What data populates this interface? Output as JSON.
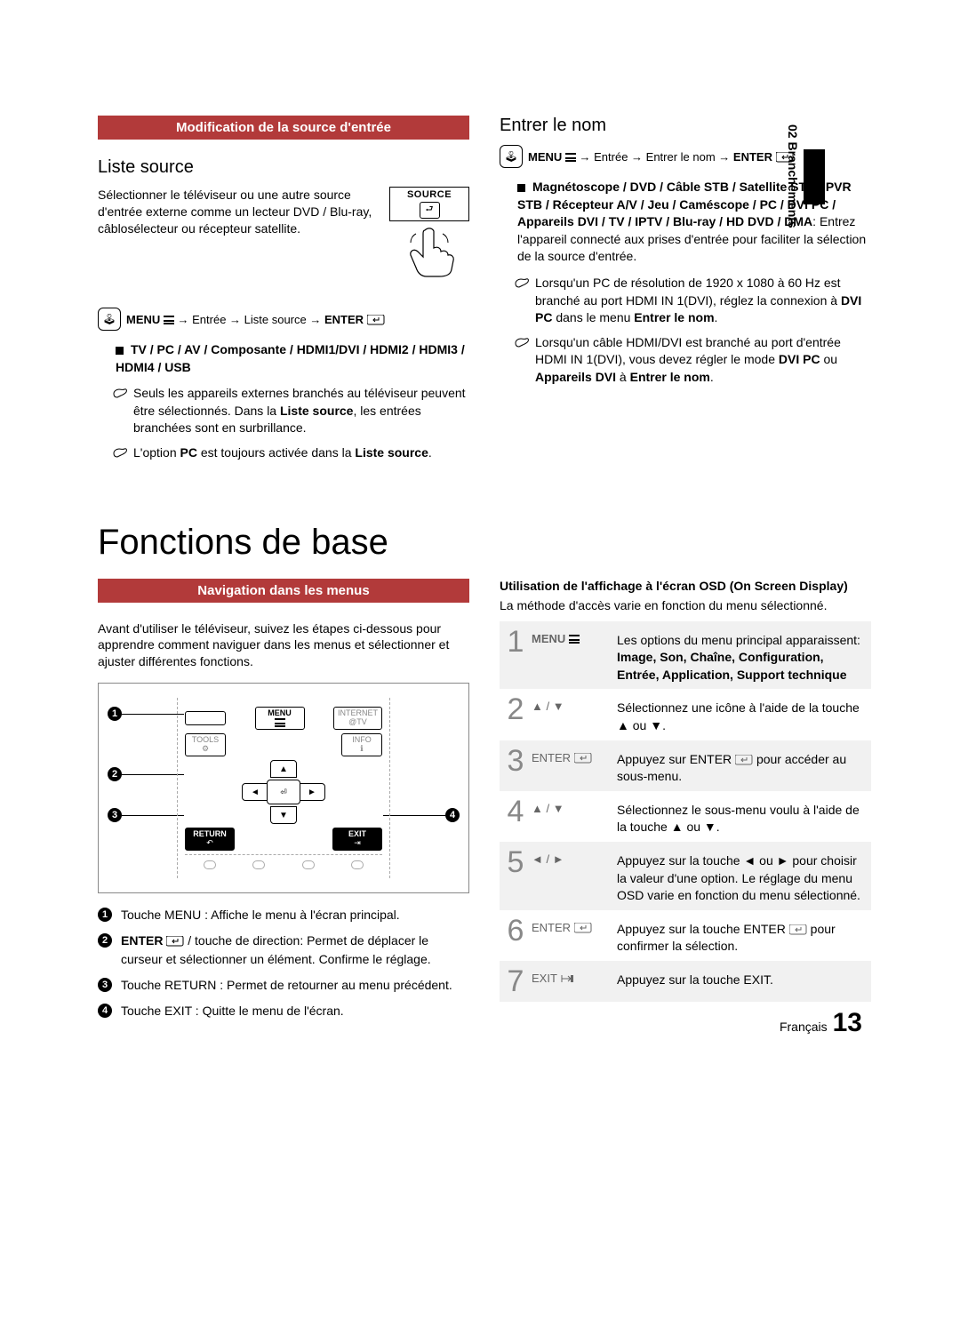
{
  "chapter_tab": "02  Branchements",
  "left": {
    "section_bar": "Modification de la source d'entrée",
    "subhead": "Liste source",
    "intro": "Sélectionner le téléviseur ou une autre source d'entrée externe comme un lecteur DVD / Blu-ray, câblosélecteur ou récepteur satellite.",
    "source_label": "SOURCE",
    "menu_path": "MENU → Entrée → Liste source → ENTER",
    "bullet1_bold": "TV / PC / AV / Composante / HDMI1/DVI / HDMI2 / HDMI3 / HDMI4 / USB",
    "note1": "Seuls les appareils externes branchés au téléviseur peuvent être sélectionnés. Dans la Liste source, les entrées branchées sont en surbrillance.",
    "note1_b1": "Liste source",
    "note2_pre": "L'option ",
    "note2_b1": "PC",
    "note2_mid": " est toujours activée dans la ",
    "note2_b2": "Liste source",
    "note2_post": "."
  },
  "right": {
    "subhead": "Entrer le nom",
    "menu_path": "MENU → Entrée → Entrer le nom → ENTER",
    "bullet_bold": "Magnétoscope / DVD / Câble STB / Satellite STB / PVR STB / Récepteur A/V / Jeu / Caméscope / PC / DVI PC / Appareils DVI / TV / IPTV / Blu-ray / HD DVD / DMA",
    "bullet_rest": ": Entrez l'appareil connecté aux prises d'entrée pour faciliter la sélection de la source d'entrée.",
    "note1_pre": "Lorsqu'un PC de résolution de 1920 x 1080 à 60 Hz est branché au port HDMI IN 1(DVI), réglez la connexion à ",
    "note1_b1": "DVI PC",
    "note1_mid": " dans le menu ",
    "note1_b2": "Entrer le nom",
    "note1_post": ".",
    "note2_pre": "Lorsqu'un câble HDMI/DVI est branché au port d'entrée HDMI IN 1(DVI), vous devez régler le mode ",
    "note2_b1": "DVI PC",
    "note2_mid": " ou ",
    "note2_b2": "Appareils DVI",
    "note2_mid2": " à ",
    "note2_b3": "Entrer le nom",
    "note2_post": "."
  },
  "big_title": "Fonctions de base",
  "nav": {
    "section_bar": "Navigation dans les menus",
    "intro": "Avant d'utiliser le téléviseur, suivez les étapes ci-dessous pour apprendre comment naviguer dans les menus et sélectionner et ajuster différentes fonctions.",
    "remote": {
      "menu": "MENU",
      "internet": "INTERNET",
      "internet_sub": "@TV",
      "tools": "TOOLS",
      "info": "INFO",
      "return": "RETURN",
      "exit": "EXIT"
    },
    "callouts": {
      "c1": "Touche MENU : Affiche le menu à l'écran principal.",
      "c2": "ENTER      / touche de direction: Permet de déplacer le curseur et sélectionner un élément. Confirme le réglage.",
      "c3": "Touche RETURN : Permet de retourner au menu précédent.",
      "c4": "Touche EXIT : Quitte le menu de l'écran."
    }
  },
  "osd": {
    "head": "Utilisation de l'affichage à l'écran OSD (On Screen Display)",
    "sub": "La méthode d'accès varie en fonction du menu sélectionné.",
    "steps": [
      {
        "n": "1",
        "key": "MENU",
        "desc": "Les options du menu principal apparaissent:",
        "bold": "Image, Son, Chaîne, Configuration, Entrée, Application, Support technique",
        "alt": true
      },
      {
        "n": "2",
        "key": "▲ / ▼",
        "desc": "Sélectionnez une icône à l'aide de la touche ▲ ou ▼.",
        "alt": false
      },
      {
        "n": "3",
        "key": "ENTER",
        "desc": "Appuyez sur ENTER      pour accéder au sous-menu.",
        "alt": true
      },
      {
        "n": "4",
        "key": "▲ / ▼",
        "desc": "Sélectionnez le sous-menu voulu à l'aide de la touche ▲ ou ▼.",
        "alt": false
      },
      {
        "n": "5",
        "key": "◄ / ►",
        "desc": "Appuyez sur la touche ◄ ou ► pour choisir la valeur d'une option. Le réglage du menu OSD varie en fonction du menu sélectionné.",
        "alt": true
      },
      {
        "n": "6",
        "key": "ENTER",
        "desc": "Appuyez sur la touche ENTER      pour confirmer la sélection.",
        "alt": false
      },
      {
        "n": "7",
        "key": "EXIT",
        "desc": "Appuyez sur la touche EXIT.",
        "alt": true
      }
    ]
  },
  "footer_lang": "Français",
  "footer_page": "13",
  "colors": {
    "bar": "#b23a3a",
    "step_num": "#888888",
    "step_alt_bg": "#f1f1f1"
  }
}
